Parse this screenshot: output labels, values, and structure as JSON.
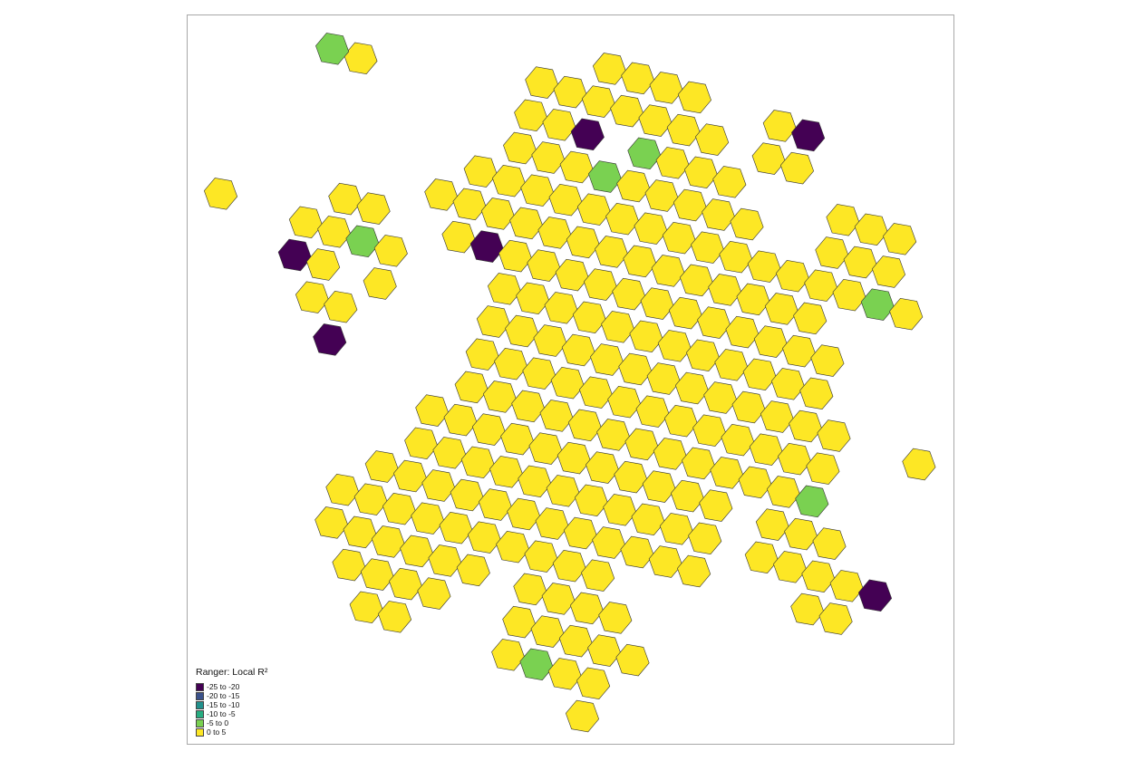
{
  "map": {
    "hex_fill_default": "#FDE725",
    "hex_stroke": "#333333",
    "class_colors": {
      "c1": "#440154",
      "c2": "#3B528B",
      "c3": "#21908C",
      "c4": "#27AD81",
      "c5": "#7AD151",
      "c6": "#FDE725"
    }
  },
  "legend": {
    "title": "Ranger: Local R²",
    "items": [
      {
        "label": "-25 to -20",
        "color": "#440154"
      },
      {
        "label": "-20 to -15",
        "color": "#3B528B"
      },
      {
        "label": "-15 to -10",
        "color": "#21908C"
      },
      {
        "label": "-10 to -5",
        "color": "#27AD81"
      },
      {
        "label": "-5 to 0",
        "color": "#7AD151"
      },
      {
        "label": "0 to 5",
        "color": "#FDE725"
      }
    ]
  }
}
